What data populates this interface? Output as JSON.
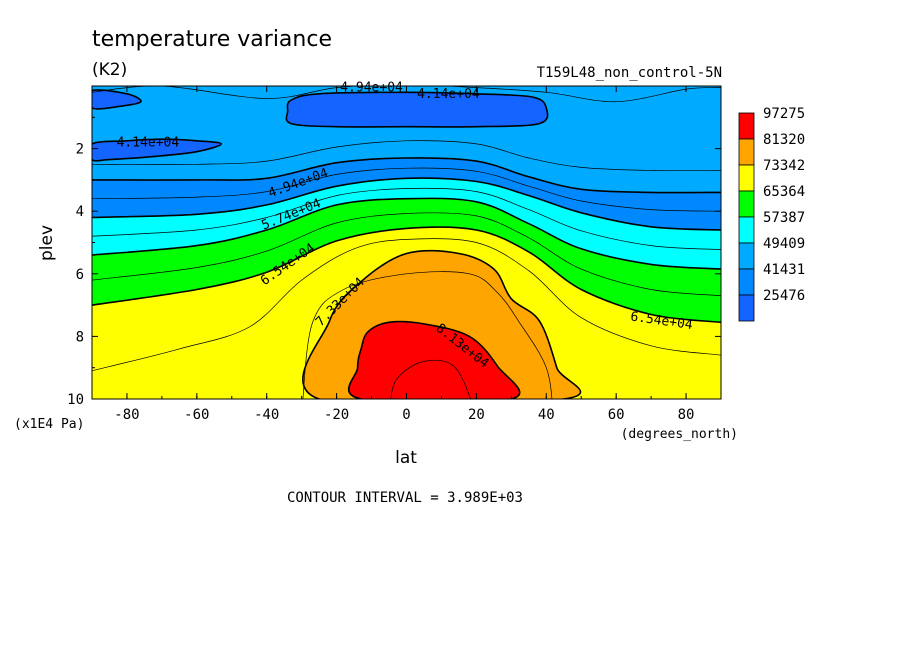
{
  "chart_data": {
    "type": "contour",
    "title": "temperature variance",
    "units": "(K2)",
    "experiment": "T159L48_non_control-5N",
    "xlabel": "lat",
    "x_units": "(degrees_north)",
    "ylabel": "plev",
    "y_units": "(x1E4 Pa)",
    "xlim": [
      -90,
      90
    ],
    "ylim": [
      0,
      10
    ],
    "x_ticks": [
      -80,
      -60,
      -40,
      -20,
      0,
      20,
      40,
      60,
      80
    ],
    "x_tick_labels": [
      "-80",
      "-60",
      "-40",
      "-20",
      "0",
      "20",
      "40",
      "60",
      "80"
    ],
    "y_ticks": [
      2,
      4,
      6,
      8,
      10
    ],
    "y_tick_labels": [
      "2",
      "4",
      "6",
      "8",
      "10"
    ],
    "y_inverted": true,
    "contour_interval_text": "CONTOUR INTERVAL = 3.989E+03",
    "colorbar": {
      "labels": [
        "97275",
        "81320",
        "73342",
        "65364",
        "57387",
        "49409",
        "41431",
        "25476"
      ],
      "colors": [
        "#ff0000",
        "#ffa500",
        "#ffff00",
        "#00ff00",
        "#00ffff",
        "#00aaff",
        "#0088ff",
        "#1464ff"
      ]
    },
    "contour_labels": [
      {
        "text": "4.94e+04",
        "lat": -10,
        "plev": 0.05
      },
      {
        "text": "4.14e+04",
        "lat": 12,
        "plev": 0.25
      },
      {
        "text": "4.14e+04",
        "lat": -74,
        "plev": 1.8
      },
      {
        "text": "4.94e+04",
        "lat": -31,
        "plev": 3.1
      },
      {
        "text": "5.74e+04",
        "lat": -33,
        "plev": 4.1
      },
      {
        "text": "6.54e+04",
        "lat": -34,
        "plev": 5.7
      },
      {
        "text": "7.33e+04",
        "lat": -19,
        "plev": 6.9
      },
      {
        "text": "8.13e+04",
        "lat": 16,
        "plev": 8.3
      },
      {
        "text": "6.54e+04",
        "lat": 73,
        "plev": 7.5
      }
    ],
    "filled_bands": [
      {
        "level": "25476-41431",
        "color": "#1464ff",
        "shape": "upper-core",
        "points": [
          [
            -33,
            0.45
          ],
          [
            -25,
            0.25
          ],
          [
            0,
            0.2
          ],
          [
            20,
            0.25
          ],
          [
            36,
            0.35
          ],
          [
            40,
            0.7
          ],
          [
            38,
            1.2
          ],
          [
            20,
            1.3
          ],
          [
            0,
            1.3
          ],
          [
            -20,
            1.3
          ],
          [
            -33,
            1.2
          ],
          [
            -34,
            0.8
          ]
        ]
      },
      {
        "level": "25476-41431",
        "color": "#1464ff",
        "shape": "left-lobe",
        "points": [
          [
            -90,
            1.85
          ],
          [
            -80,
            1.75
          ],
          [
            -70,
            1.7
          ],
          [
            -60,
            1.75
          ],
          [
            -53,
            1.85
          ],
          [
            -60,
            2.1
          ],
          [
            -72,
            2.25
          ],
          [
            -85,
            2.35
          ],
          [
            -90,
            2.35
          ]
        ]
      },
      {
        "level": "25476-41431",
        "color": "#1464ff",
        "shape": "left-top",
        "points": [
          [
            -90,
            0.15
          ],
          [
            -80,
            0.25
          ],
          [
            -76,
            0.5
          ],
          [
            -82,
            0.65
          ],
          [
            -90,
            0.7
          ]
        ]
      },
      {
        "level": "41431-49409",
        "color": "#0088ff",
        "shape": "band",
        "upper_boundary": [
          [
            -90,
            3.0
          ],
          [
            -60,
            3.0
          ],
          [
            -40,
            2.95
          ],
          [
            -20,
            2.45
          ],
          [
            0,
            2.3
          ],
          [
            20,
            2.4
          ],
          [
            35,
            2.9
          ],
          [
            50,
            3.3
          ],
          [
            70,
            3.4
          ],
          [
            90,
            3.4
          ]
        ]
      },
      {
        "level": "49409-57387",
        "color": "#00ffff",
        "shape": "band",
        "upper_boundary": [
          [
            -90,
            4.2
          ],
          [
            -60,
            4.1
          ],
          [
            -40,
            3.8
          ],
          [
            -20,
            3.2
          ],
          [
            0,
            2.95
          ],
          [
            20,
            3.05
          ],
          [
            35,
            3.5
          ],
          [
            50,
            4.05
          ],
          [
            70,
            4.5
          ],
          [
            90,
            4.6
          ]
        ]
      },
      {
        "level": "57387-65364",
        "color": "#00ff00",
        "shape": "band",
        "upper_boundary": [
          [
            -90,
            5.4
          ],
          [
            -60,
            5.1
          ],
          [
            -40,
            4.6
          ],
          [
            -20,
            3.8
          ],
          [
            0,
            3.6
          ],
          [
            20,
            3.7
          ],
          [
            35,
            4.4
          ],
          [
            50,
            5.2
          ],
          [
            70,
            5.7
          ],
          [
            90,
            5.85
          ]
        ]
      },
      {
        "level": "65364-73342",
        "color": "#ffff00",
        "shape": "band",
        "upper_boundary": [
          [
            -90,
            7.0
          ],
          [
            -60,
            6.5
          ],
          [
            -40,
            5.95
          ],
          [
            -20,
            4.95
          ],
          [
            0,
            4.55
          ],
          [
            20,
            4.6
          ],
          [
            35,
            5.3
          ],
          [
            50,
            6.5
          ],
          [
            70,
            7.3
          ],
          [
            90,
            7.55
          ]
        ]
      },
      {
        "level": "73342-81320",
        "color": "#ffa500",
        "shape": "core",
        "points": [
          [
            -25,
            10
          ],
          [
            -22,
            7.5
          ],
          [
            -13,
            6.25
          ],
          [
            0,
            5.35
          ],
          [
            15,
            5.35
          ],
          [
            25,
            5.85
          ],
          [
            30,
            6.8
          ],
          [
            38,
            7.5
          ],
          [
            43,
            9.0
          ],
          [
            45,
            10
          ]
        ]
      },
      {
        "level": "81320-97275",
        "color": "#ff0000",
        "shape": "core",
        "points": [
          [
            -13,
            10
          ],
          [
            -14,
            9.0
          ],
          [
            -13,
            8.4
          ],
          [
            -11,
            7.85
          ],
          [
            -5,
            7.55
          ],
          [
            5,
            7.6
          ],
          [
            18,
            8.0
          ],
          [
            26,
            8.95
          ],
          [
            30,
            10
          ]
        ]
      }
    ]
  }
}
